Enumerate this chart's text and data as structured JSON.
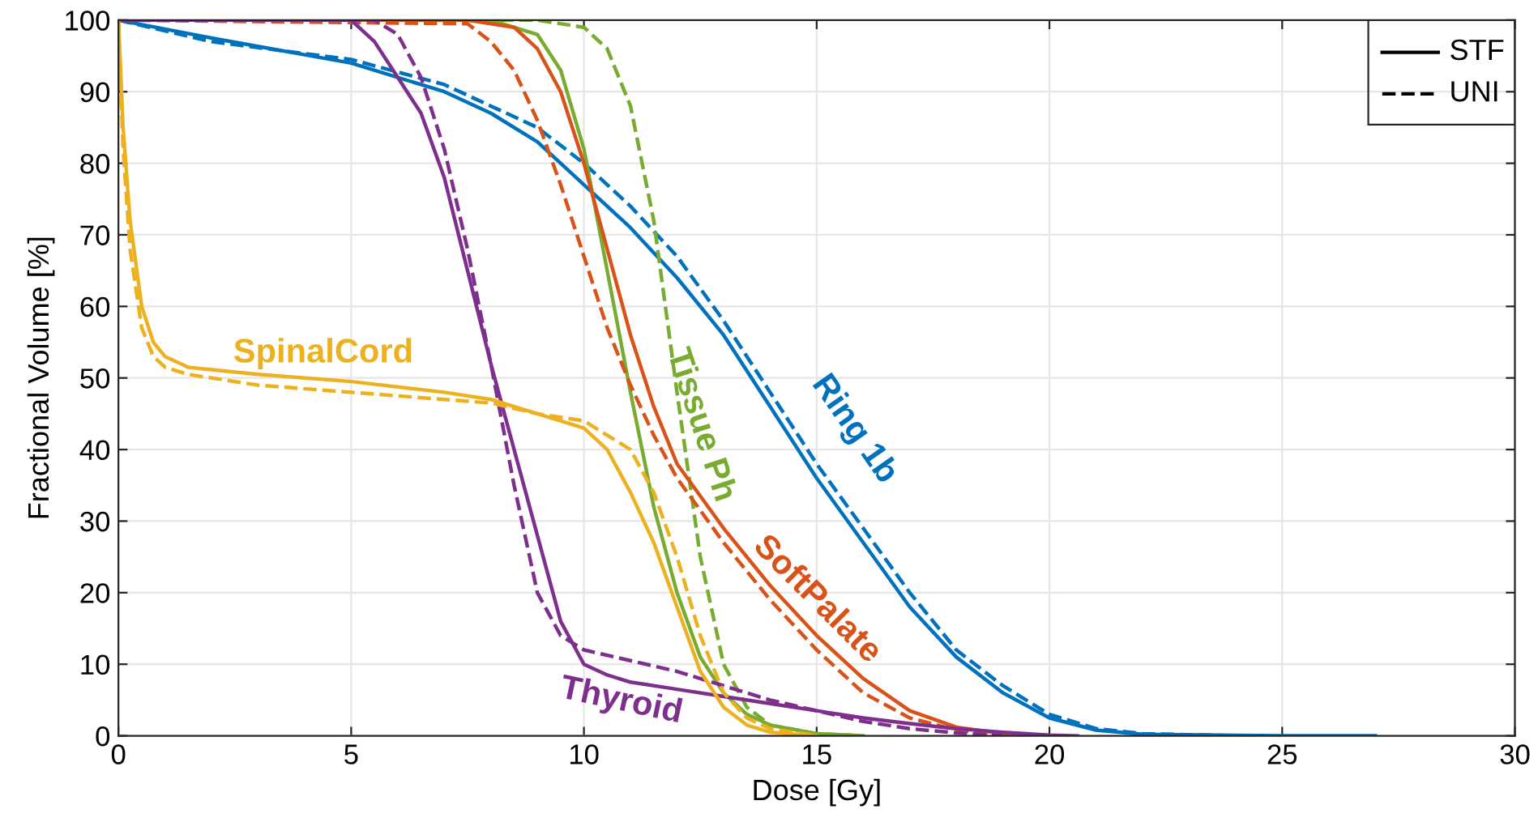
{
  "chart_data": {
    "type": "line",
    "xlabel": "Dose [Gy]",
    "ylabel": "Fractional Volume [%]",
    "xlim": [
      0,
      30
    ],
    "ylim": [
      0,
      100
    ],
    "xticks": [
      0,
      5,
      10,
      15,
      20,
      25,
      30
    ],
    "yticks": [
      0,
      10,
      20,
      30,
      40,
      50,
      60,
      70,
      80,
      90,
      100
    ],
    "grid": true,
    "marker": "none",
    "series": [
      {
        "name": "Ring 1b",
        "color": "#0072bd",
        "line_style": "solid",
        "x": [
          0,
          2,
          5,
          7,
          8,
          9,
          10,
          11,
          12,
          13,
          14,
          15,
          16,
          17,
          18,
          19,
          20,
          21,
          22,
          25,
          27
        ],
        "values": [
          100,
          97.5,
          94,
          90,
          87,
          83,
          77,
          71,
          64,
          56,
          46,
          36,
          27,
          18,
          11,
          6,
          2.5,
          0.8,
          0.2,
          0,
          0
        ]
      },
      {
        "color": "#0072bd",
        "line_style": "dashed",
        "x": [
          0,
          2,
          5,
          7,
          8,
          9,
          10,
          11,
          12,
          13,
          14,
          15,
          16,
          17,
          18,
          19,
          20,
          21,
          22,
          24
        ],
        "values": [
          100,
          97,
          94.5,
          91,
          88,
          85,
          80,
          74,
          67,
          58,
          48,
          38,
          29,
          20,
          12,
          7,
          3,
          1,
          0.3,
          0
        ]
      },
      {
        "name": "Tissue Ph",
        "color": "#77ac30",
        "line_style": "solid",
        "x": [
          0,
          8,
          9,
          9.5,
          10,
          10.5,
          11,
          11.5,
          12,
          12.5,
          13,
          13.5,
          14,
          15,
          16
        ],
        "values": [
          100,
          100,
          98,
          93,
          82,
          65,
          48,
          32,
          20,
          11,
          6,
          3,
          1.5,
          0.3,
          0
        ]
      },
      {
        "color": "#77ac30",
        "line_style": "dashed",
        "x": [
          0,
          9,
          10,
          10.5,
          11,
          11.5,
          12,
          12.5,
          13,
          13.5,
          14,
          15,
          16
        ],
        "values": [
          100,
          100,
          99,
          96,
          88,
          72,
          48,
          25,
          10,
          4,
          1.5,
          0.3,
          0
        ]
      },
      {
        "name": "SoftPalate",
        "color": "#d95319",
        "line_style": "solid",
        "x": [
          0,
          7.5,
          8.5,
          9,
          9.5,
          10,
          10.5,
          11,
          11.5,
          12,
          13,
          14,
          15,
          16,
          17,
          18,
          19,
          20
        ],
        "values": [
          100,
          100,
          99,
          96,
          90,
          80,
          68,
          56,
          46,
          38,
          29,
          21,
          14,
          8,
          3.5,
          1.2,
          0.3,
          0
        ]
      },
      {
        "color": "#d95319",
        "line_style": "dashed",
        "x": [
          0,
          7.5,
          8,
          8.5,
          9,
          9.5,
          10,
          10.5,
          11,
          11.5,
          12,
          13,
          14,
          15,
          16,
          17,
          18,
          19
        ],
        "values": [
          100,
          99.5,
          97,
          93,
          86,
          77,
          67,
          57,
          49,
          42,
          36,
          27,
          19,
          12,
          6,
          2.5,
          0.8,
          0
        ]
      },
      {
        "name": "Thyroid",
        "color": "#7e2f8e",
        "line_style": "solid",
        "x": [
          0,
          5,
          5.5,
          6,
          6.5,
          7,
          7.5,
          8,
          8.5,
          9,
          9.5,
          10,
          10.5,
          11,
          12,
          13,
          14,
          15,
          16,
          17,
          18,
          19,
          20,
          20.6
        ],
        "values": [
          100,
          100,
          97,
          92,
          87,
          78,
          65,
          52,
          40,
          28,
          16,
          10,
          8.5,
          7.5,
          6.5,
          5.5,
          4.5,
          3.5,
          2.5,
          1.7,
          1,
          0.5,
          0.1,
          0
        ]
      },
      {
        "color": "#7e2f8e",
        "line_style": "dashed",
        "x": [
          0,
          5.5,
          6,
          6.5,
          7,
          7.5,
          8,
          8.5,
          9,
          9.5,
          10,
          11,
          12,
          13,
          14,
          15,
          16,
          17,
          18,
          19
        ],
        "values": [
          100,
          100,
          98,
          92,
          82,
          68,
          52,
          35,
          20,
          14,
          12,
          10.5,
          9,
          7,
          5,
          3.5,
          2,
          1,
          0.4,
          0
        ]
      },
      {
        "name": "SpinalCord",
        "color": "#edb120",
        "line_style": "solid",
        "x": [
          0,
          0.1,
          0.25,
          0.5,
          0.75,
          1,
          1.5,
          3,
          5,
          7,
          8,
          9,
          10,
          10.5,
          11,
          11.5,
          12,
          12.5,
          13,
          13.5,
          14,
          15
        ],
        "values": [
          100,
          85,
          72,
          60,
          55,
          53,
          51.5,
          50.5,
          49.5,
          48,
          47,
          45,
          43,
          40,
          34,
          27,
          18,
          9,
          4,
          1.5,
          0.5,
          0
        ]
      },
      {
        "color": "#edb120",
        "line_style": "dashed",
        "x": [
          0,
          0.1,
          0.25,
          0.5,
          0.75,
          1,
          1.5,
          3,
          5,
          7,
          8,
          9,
          10,
          11,
          11.5,
          12,
          12.5,
          13,
          13.5,
          14,
          15
        ],
        "values": [
          100,
          82,
          68,
          57,
          53,
          51.5,
          50.5,
          49,
          48,
          47,
          46.5,
          45,
          44,
          40,
          34,
          25,
          14,
          6,
          2.5,
          1,
          0
        ]
      }
    ],
    "annotations": [
      "STF",
      "UNI"
    ]
  }
}
